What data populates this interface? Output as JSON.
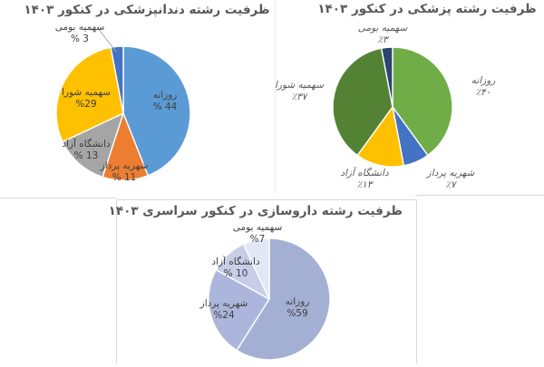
{
  "style_colors": {
    "panel_border": "#D9D9D9",
    "title_color": "#595959",
    "inside_label_color": "#3F3F3F",
    "outside_label_color": "#595959",
    "background": "#FFFFFF"
  },
  "chart_data": [
    {
      "type": "pie",
      "title": "ظرفیت رشته دندانپزشکی در کنکور ۱۴۰۳",
      "direction": "clockwise",
      "start_angle_deg": 0,
      "label_position": "inside (smallest slice labeled outside with leader line)",
      "slices": [
        {
          "name": "روزانه",
          "value": 44,
          "pct_label": "% 44",
          "color": "#5B9BD5"
        },
        {
          "name": "شهریه پرداز",
          "value": 11,
          "pct_label": "% 11",
          "color": "#ED7D31"
        },
        {
          "name": "دانشگاه آزاد",
          "value": 13,
          "pct_label": "% 13",
          "color": "#A5A5A5"
        },
        {
          "name": "سهمیه شورا",
          "value": 29,
          "pct_label": "%29",
          "color": "#FFC000"
        },
        {
          "name": "سهمیه بومی",
          "value": 3,
          "pct_label": "% 3",
          "color": "#4472C4"
        }
      ]
    },
    {
      "type": "pie",
      "title": "ظرفیت رشته پزشکی در کنکور ۱۴۰۳",
      "direction": "clockwise",
      "start_angle_deg": 0,
      "label_position": "outside",
      "slices": [
        {
          "name": "روزانه",
          "value": 40,
          "pct_label": "٪۴۰",
          "color": "#70AD47"
        },
        {
          "name": "شهریه پرداز",
          "value": 7,
          "pct_label": "٪۷",
          "color": "#4472C4"
        },
        {
          "name": "دانشگاه آزاد",
          "value": 13,
          "pct_label": "٪۱۳",
          "color": "#FFC000"
        },
        {
          "name": "سهمیه شورا",
          "value": 37,
          "pct_label": "٪۳۷",
          "color": "#548235"
        },
        {
          "name": "سهمیه بومی",
          "value": 3,
          "pct_label": "٪۳",
          "color": "#2B4570"
        }
      ]
    },
    {
      "type": "pie",
      "title": "ظرفیت رشته داروسازی در کنکور سراسری ۱۴۰۳",
      "direction": "clockwise",
      "start_angle_deg": 0,
      "label_position": "inside (smallest slice labeled outside)",
      "slices": [
        {
          "name": "روزانه",
          "value": 59,
          "pct_label": "%59",
          "color": "#A4AFD4"
        },
        {
          "name": "شهریه پرداز",
          "value": 24,
          "pct_label": "%24",
          "color": "#ACB6DC"
        },
        {
          "name": "دانشگاه آزاد",
          "value": 10,
          "pct_label": "% 10",
          "color": "#C7CEE8"
        },
        {
          "name": "سهمیه بومی",
          "value": 7,
          "pct_label": "%7",
          "color": "#E3E7F4"
        }
      ]
    }
  ]
}
